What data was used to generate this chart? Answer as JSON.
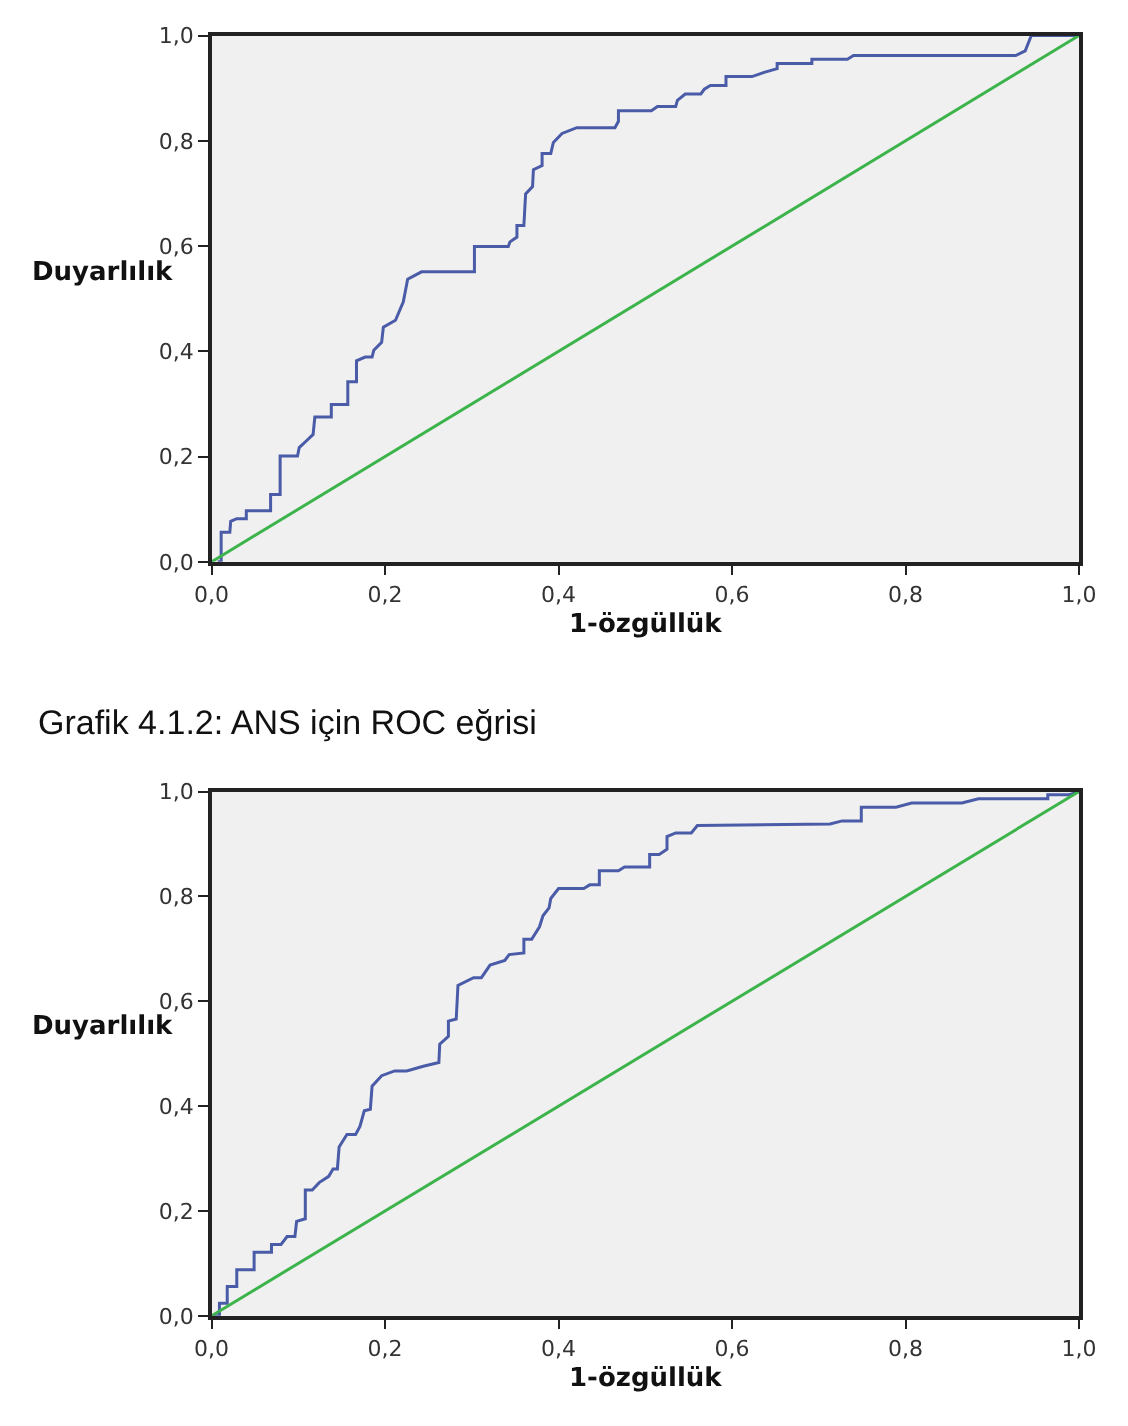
{
  "chart_data": [
    {
      "type": "line",
      "xlabel": "1-özgüllük",
      "ylabel": "Duyarlılık",
      "xlim": [
        0,
        1
      ],
      "ylim": [
        0,
        1
      ],
      "xticks": [
        {
          "value": 0,
          "label": "0,0"
        },
        {
          "value": 0.2,
          "label": "0,2"
        },
        {
          "value": 0.4,
          "label": "0,4"
        },
        {
          "value": 0.6,
          "label": "0,6"
        },
        {
          "value": 0.8,
          "label": "0,8"
        },
        {
          "value": 1,
          "label": "1,0"
        }
      ],
      "yticks": [
        {
          "value": 0,
          "label": "0,0"
        },
        {
          "value": 0.2,
          "label": "0,2"
        },
        {
          "value": 0.4,
          "label": "0,4"
        },
        {
          "value": 0.6,
          "label": "0,6"
        },
        {
          "value": 0.8,
          "label": "0,8"
        },
        {
          "value": 1,
          "label": "1,0"
        }
      ],
      "series": [
        {
          "color": "#4a5ba8",
          "x": [
            0.007,
            0.011,
            0.011,
            0.021,
            0.022,
            0.029,
            0.04,
            0.04,
            0.068,
            0.068,
            0.079,
            0.079,
            0.099,
            0.101,
            0.11,
            0.117,
            0.119,
            0.138,
            0.138,
            0.157,
            0.157,
            0.167,
            0.167,
            0.177,
            0.185,
            0.187,
            0.196,
            0.198,
            0.212,
            0.221,
            0.226,
            0.242,
            0.303,
            0.303,
            0.342,
            0.344,
            0.352,
            0.352,
            0.36,
            0.362,
            0.37,
            0.371,
            0.381,
            0.381,
            0.391,
            0.394,
            0.404,
            0.421,
            0.465,
            0.469,
            0.469,
            0.507,
            0.514,
            0.535,
            0.537,
            0.546,
            0.564,
            0.568,
            0.575,
            0.593,
            0.593,
            0.623,
            0.637,
            0.652,
            0.652,
            0.692,
            0.692,
            0.733,
            0.74,
            0.927,
            0.938,
            0.945,
            1.0
          ],
          "values": [
            0,
            0,
            0.056,
            0.056,
            0.077,
            0.082,
            0.082,
            0.097,
            0.097,
            0.128,
            0.128,
            0.201,
            0.201,
            0.217,
            0.231,
            0.242,
            0.275,
            0.275,
            0.299,
            0.299,
            0.342,
            0.342,
            0.382,
            0.389,
            0.389,
            0.402,
            0.417,
            0.446,
            0.459,
            0.494,
            0.537,
            0.551,
            0.551,
            0.599,
            0.599,
            0.608,
            0.617,
            0.639,
            0.639,
            0.699,
            0.713,
            0.745,
            0.753,
            0.776,
            0.776,
            0.797,
            0.814,
            0.825,
            0.825,
            0.837,
            0.857,
            0.857,
            0.865,
            0.865,
            0.877,
            0.889,
            0.889,
            0.898,
            0.905,
            0.905,
            0.922,
            0.922,
            0.93,
            0.937,
            0.947,
            0.947,
            0.955,
            0.955,
            0.962,
            0.962,
            0.971,
            1.0,
            1.0
          ]
        },
        {
          "color": "#3cb44b",
          "x": [
            0,
            1
          ],
          "values": [
            0,
            1
          ]
        }
      ]
    },
    {
      "type": "line",
      "title": "Grafik 4.1.2: ANS için ROC eğrisi",
      "xlabel": "1-özgüllük",
      "ylabel": "Duyarlılık",
      "xlim": [
        0,
        1
      ],
      "ylim": [
        0,
        1
      ],
      "xticks": [
        {
          "value": 0,
          "label": "0,0"
        },
        {
          "value": 0.2,
          "label": "0,2"
        },
        {
          "value": 0.4,
          "label": "0,4"
        },
        {
          "value": 0.6,
          "label": "0,6"
        },
        {
          "value": 0.8,
          "label": "0,8"
        },
        {
          "value": 1,
          "label": "1,0"
        }
      ],
      "yticks": [
        {
          "value": 0,
          "label": "0,0"
        },
        {
          "value": 0.2,
          "label": "0,2"
        },
        {
          "value": 0.4,
          "label": "0,4"
        },
        {
          "value": 0.6,
          "label": "0,6"
        },
        {
          "value": 0.8,
          "label": "0,8"
        },
        {
          "value": 1,
          "label": "1,0"
        }
      ],
      "series": [
        {
          "color": "#4a5ba8",
          "x": [
            0,
            0.009,
            0.009,
            0.018,
            0.018,
            0.029,
            0.029,
            0.049,
            0.049,
            0.069,
            0.069,
            0.08,
            0.087,
            0.096,
            0.098,
            0.108,
            0.108,
            0.116,
            0.124,
            0.135,
            0.14,
            0.145,
            0.147,
            0.156,
            0.166,
            0.171,
            0.176,
            0.183,
            0.185,
            0.196,
            0.211,
            0.225,
            0.244,
            0.262,
            0.263,
            0.273,
            0.273,
            0.282,
            0.284,
            0.302,
            0.311,
            0.321,
            0.338,
            0.343,
            0.36,
            0.36,
            0.369,
            0.378,
            0.382,
            0.389,
            0.391,
            0.4,
            0.429,
            0.436,
            0.447,
            0.447,
            0.469,
            0.476,
            0.505,
            0.505,
            0.516,
            0.525,
            0.525,
            0.535,
            0.553,
            0.56,
            0.713,
            0.727,
            0.749,
            0.749,
            0.789,
            0.807,
            0.865,
            0.884,
            0.964,
            0.964,
            0.989,
            1.0
          ],
          "values": [
            0,
            0,
            0.024,
            0.024,
            0.056,
            0.056,
            0.088,
            0.088,
            0.121,
            0.121,
            0.136,
            0.136,
            0.151,
            0.151,
            0.18,
            0.185,
            0.24,
            0.24,
            0.254,
            0.266,
            0.28,
            0.28,
            0.322,
            0.346,
            0.346,
            0.361,
            0.391,
            0.394,
            0.438,
            0.458,
            0.467,
            0.467,
            0.476,
            0.483,
            0.518,
            0.533,
            0.562,
            0.566,
            0.63,
            0.645,
            0.645,
            0.669,
            0.678,
            0.689,
            0.692,
            0.718,
            0.718,
            0.742,
            0.763,
            0.778,
            0.796,
            0.815,
            0.815,
            0.822,
            0.822,
            0.849,
            0.849,
            0.856,
            0.856,
            0.88,
            0.88,
            0.89,
            0.914,
            0.921,
            0.921,
            0.935,
            0.938,
            0.944,
            0.944,
            0.97,
            0.97,
            0.978,
            0.978,
            0.986,
            0.986,
            0.994,
            0.994,
            1.0
          ]
        },
        {
          "color": "#3cb44b",
          "x": [
            0,
            1
          ],
          "values": [
            0,
            1
          ]
        }
      ]
    }
  ]
}
